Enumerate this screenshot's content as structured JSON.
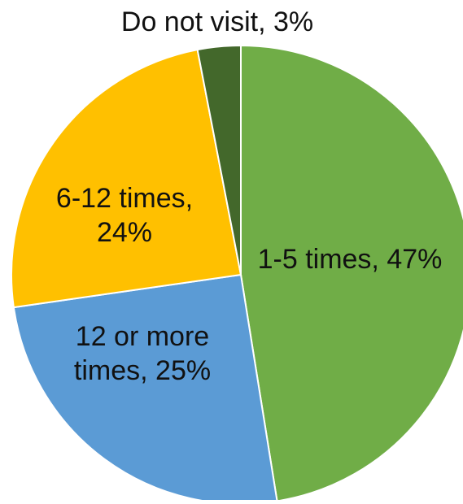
{
  "chart_data": {
    "type": "pie",
    "slices": [
      {
        "label": "1-5 times",
        "value": 47,
        "data_label": [
          "1-5 times, 47%"
        ],
        "color": "#70AD47"
      },
      {
        "label": "12 or more times",
        "value": 25,
        "data_label": [
          "12 or more",
          "times, 25%"
        ],
        "color": "#5B9BD5"
      },
      {
        "label": "6-12 times",
        "value": 24,
        "data_label": [
          "6-12 times,",
          "24%"
        ],
        "color": "#FFC000"
      },
      {
        "label": "Do not visit",
        "value": 3,
        "data_label": [
          "Do not visit, 3%"
        ],
        "color": "#43682B"
      }
    ],
    "start_angle_deg": 0,
    "direction": "clockwise",
    "legend": "none"
  }
}
